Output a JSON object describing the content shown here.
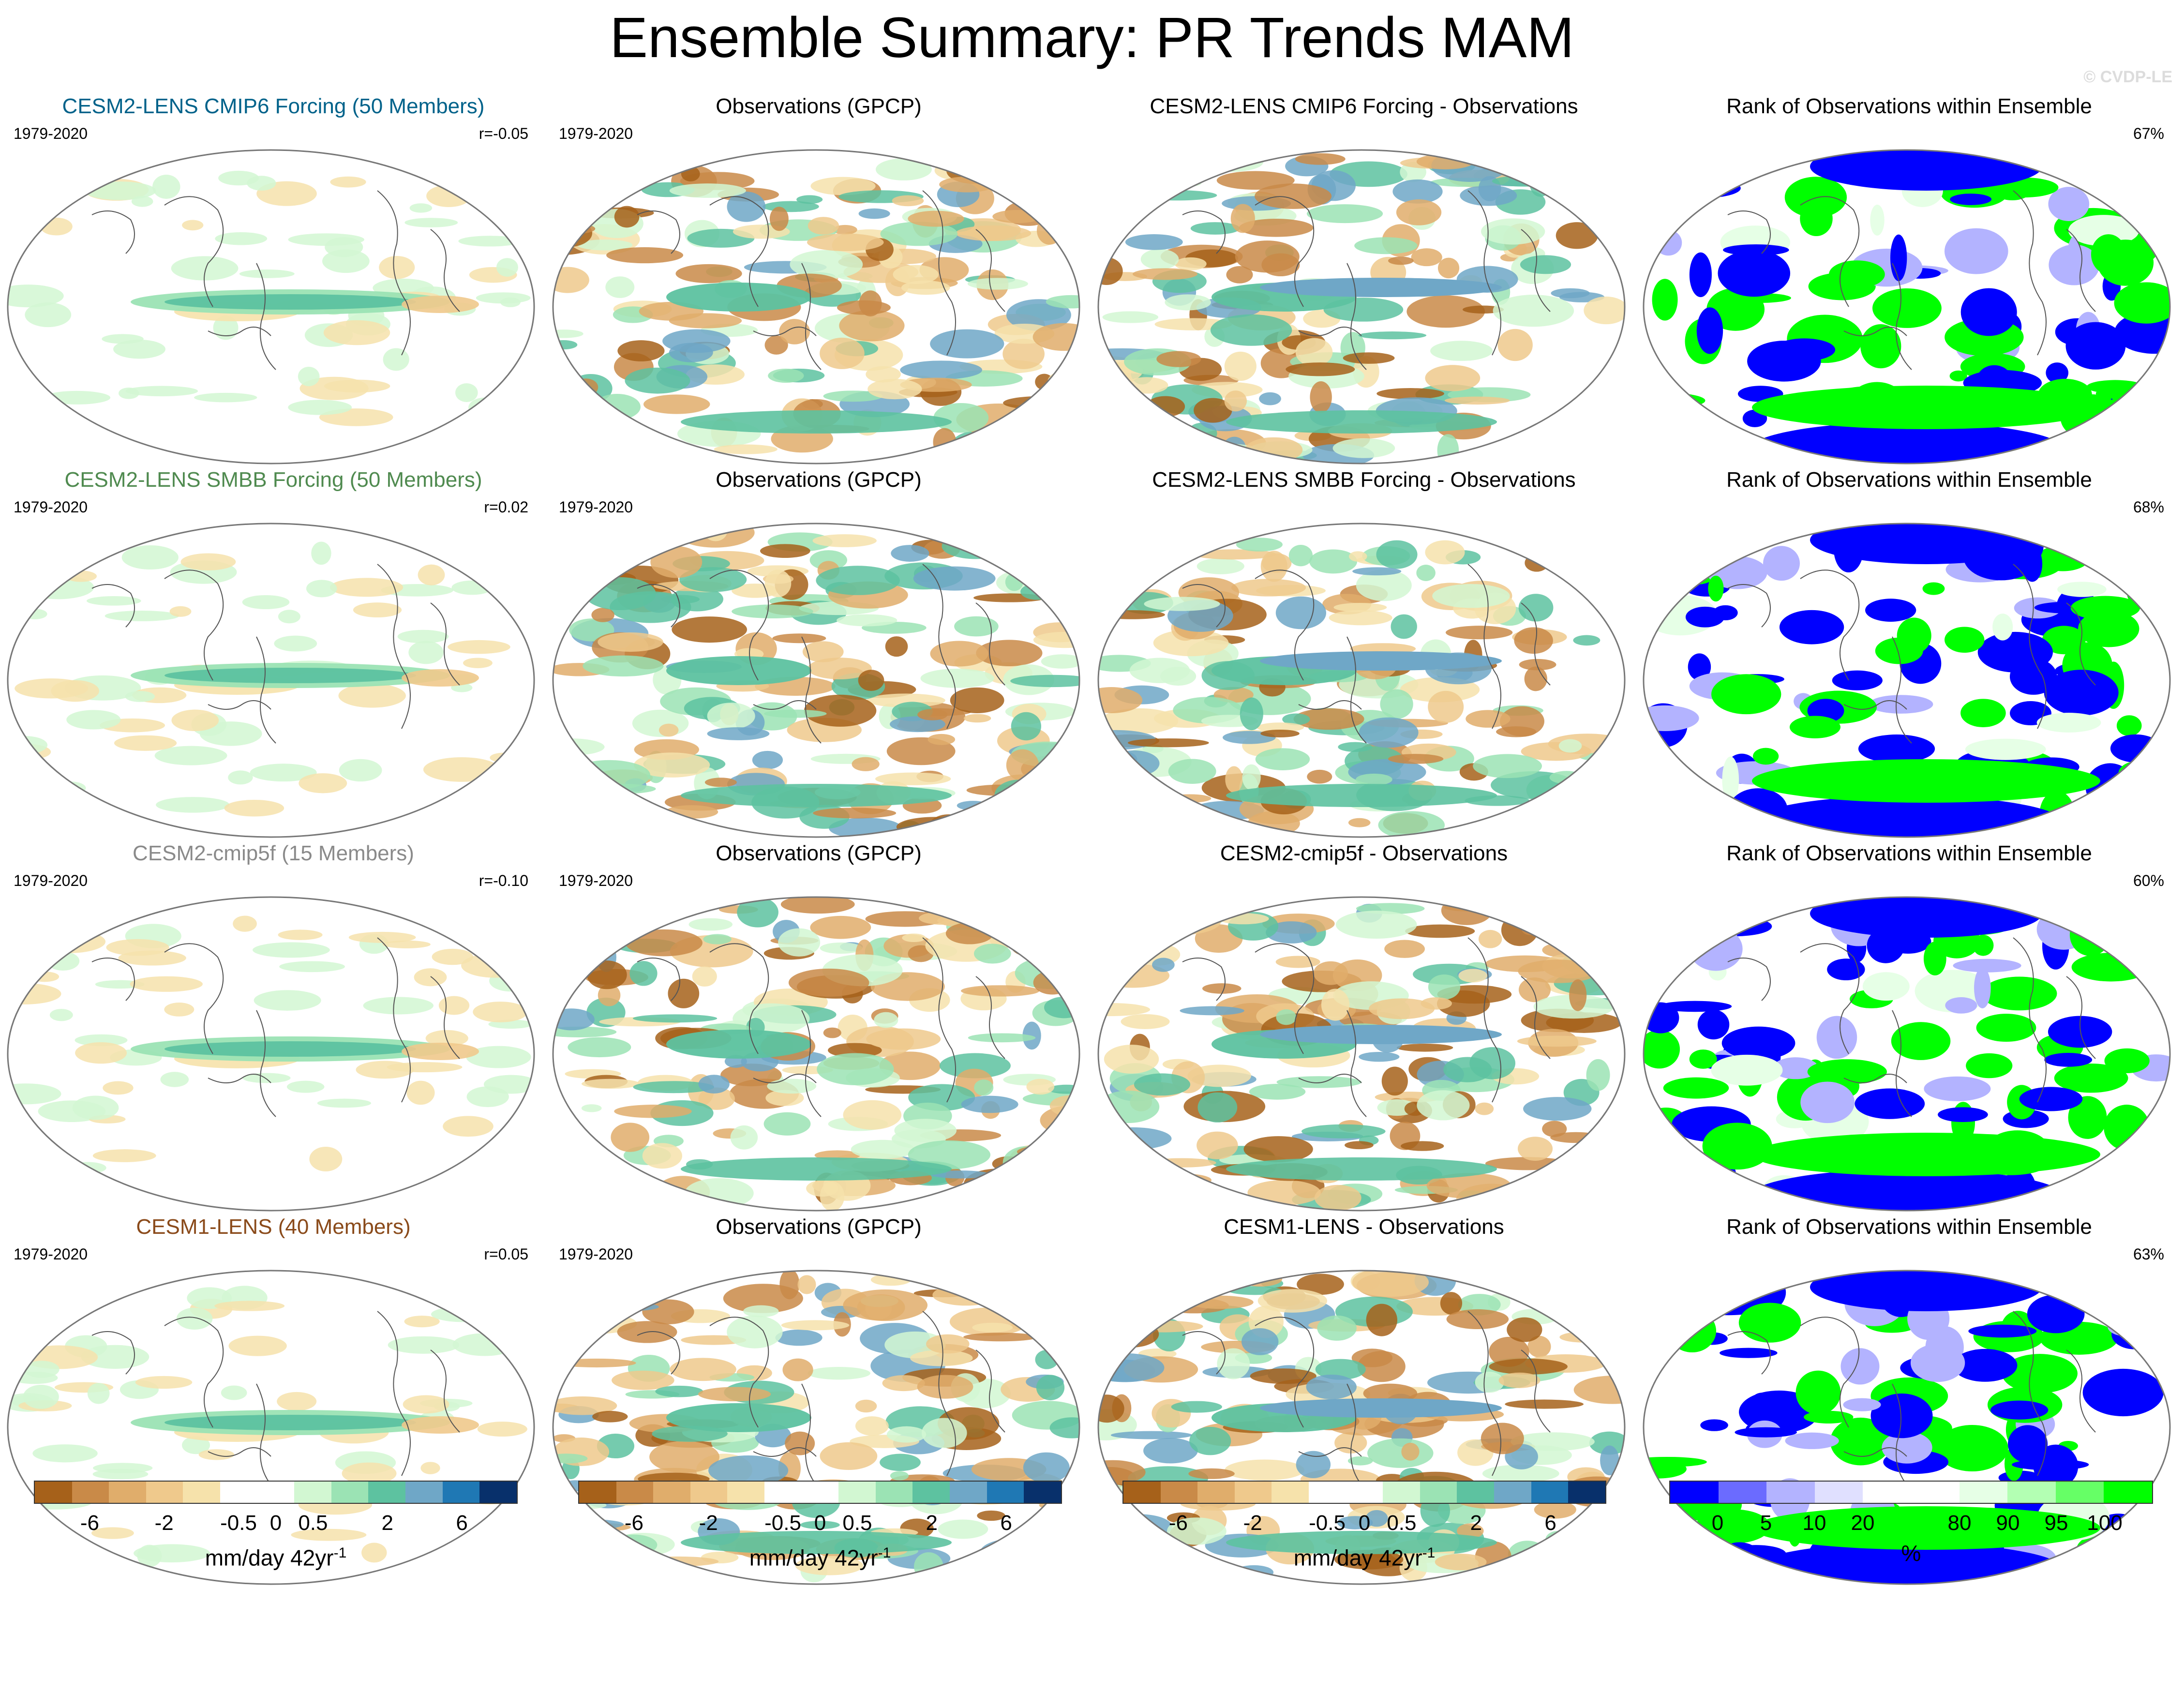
{
  "title": "Ensemble Summary: PR Trends MAM",
  "copyright": "© CVDP-LE",
  "rows": [
    {
      "model": "CESM2-LENS CMIP6 Forcing (50 Members)",
      "model_color": "#00628a",
      "years": "1979-2020",
      "r": "r=-0.05",
      "obs_title": "Observations (GPCP)",
      "obs_years": "1979-2020",
      "diff_title": "CESM2-LENS CMIP6 Forcing - Observations",
      "rank_title": "Rank of Observations within Ensemble",
      "rank_pct": "67%"
    },
    {
      "model": "CESM2-LENS SMBB Forcing (50 Members)",
      "model_color": "#4f8a4f",
      "years": "1979-2020",
      "r": "r=0.02",
      "obs_title": "Observations (GPCP)",
      "obs_years": "1979-2020",
      "diff_title": "CESM2-LENS SMBB Forcing - Observations",
      "rank_title": "Rank of Observations within Ensemble",
      "rank_pct": "68%"
    },
    {
      "model": "CESM2-cmip5f (15 Members)",
      "model_color": "#8a8a8a",
      "years": "1979-2020",
      "r": "r=-0.10",
      "obs_title": "Observations (GPCP)",
      "obs_years": "1979-2020",
      "diff_title": "CESM2-cmip5f - Observations",
      "rank_title": "Rank of Observations within Ensemble",
      "rank_pct": "60%"
    },
    {
      "model": "CESM1-LENS (40 Members)",
      "model_color": "#8a4a1a",
      "years": "1979-2020",
      "r": "r=0.05",
      "obs_title": "Observations (GPCP)",
      "obs_years": "1979-2020",
      "diff_title": "CESM1-LENS - Observations",
      "rank_title": "Rank of Observations within Ensemble",
      "rank_pct": "63%"
    }
  ],
  "trend_colorbar": {
    "colors": [
      "#a6611a",
      "#c98a48",
      "#e0ad6b",
      "#efc98c",
      "#f6e2ab",
      "#ffffff",
      "#ffffff",
      "#d2f7d2",
      "#9be3b4",
      "#5dc2a0",
      "#6fa7c7",
      "#1f78b4",
      "#08306b"
    ],
    "ticks": [
      "-6",
      "-2",
      "-0.5",
      "0",
      "0.5",
      "2",
      "6"
    ],
    "unit_base": "mm/day 42yr",
    "unit_exp": "-1"
  },
  "rank_colorbar": {
    "colors": [
      "#0000ff",
      "#6b6bff",
      "#b3b3ff",
      "#e0e0ff",
      "#ffffff",
      "#ffffff",
      "#e6ffe6",
      "#b3ffb3",
      "#66ff66",
      "#00ff00"
    ],
    "ticks": [
      "0",
      "5",
      "10",
      "20",
      "80",
      "90",
      "95",
      "100"
    ],
    "unit": "%"
  }
}
